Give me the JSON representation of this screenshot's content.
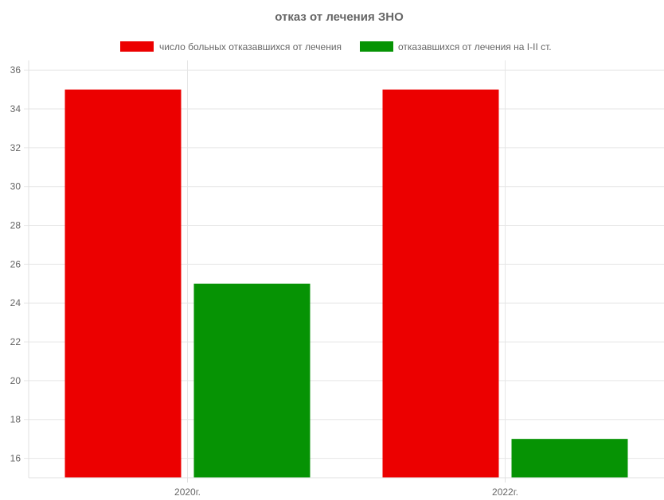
{
  "chart_data": {
    "type": "bar",
    "title": "отказ от лечения ЗНО",
    "categories": [
      "2020г.",
      "2022г."
    ],
    "series": [
      {
        "name": "число больных отказавшихся от лечения",
        "values": [
          35,
          35
        ],
        "color": "#ec0000"
      },
      {
        "name": "отказавшихся от лечения на I-II ст.",
        "values": [
          25,
          17
        ],
        "color": "#069304"
      }
    ],
    "ylim": [
      15,
      36.5
    ],
    "yticks": [
      16,
      18,
      20,
      22,
      24,
      26,
      28,
      30,
      32,
      34,
      36
    ],
    "grid": true,
    "legend_position": "top",
    "xlabel": "",
    "ylabel": ""
  }
}
